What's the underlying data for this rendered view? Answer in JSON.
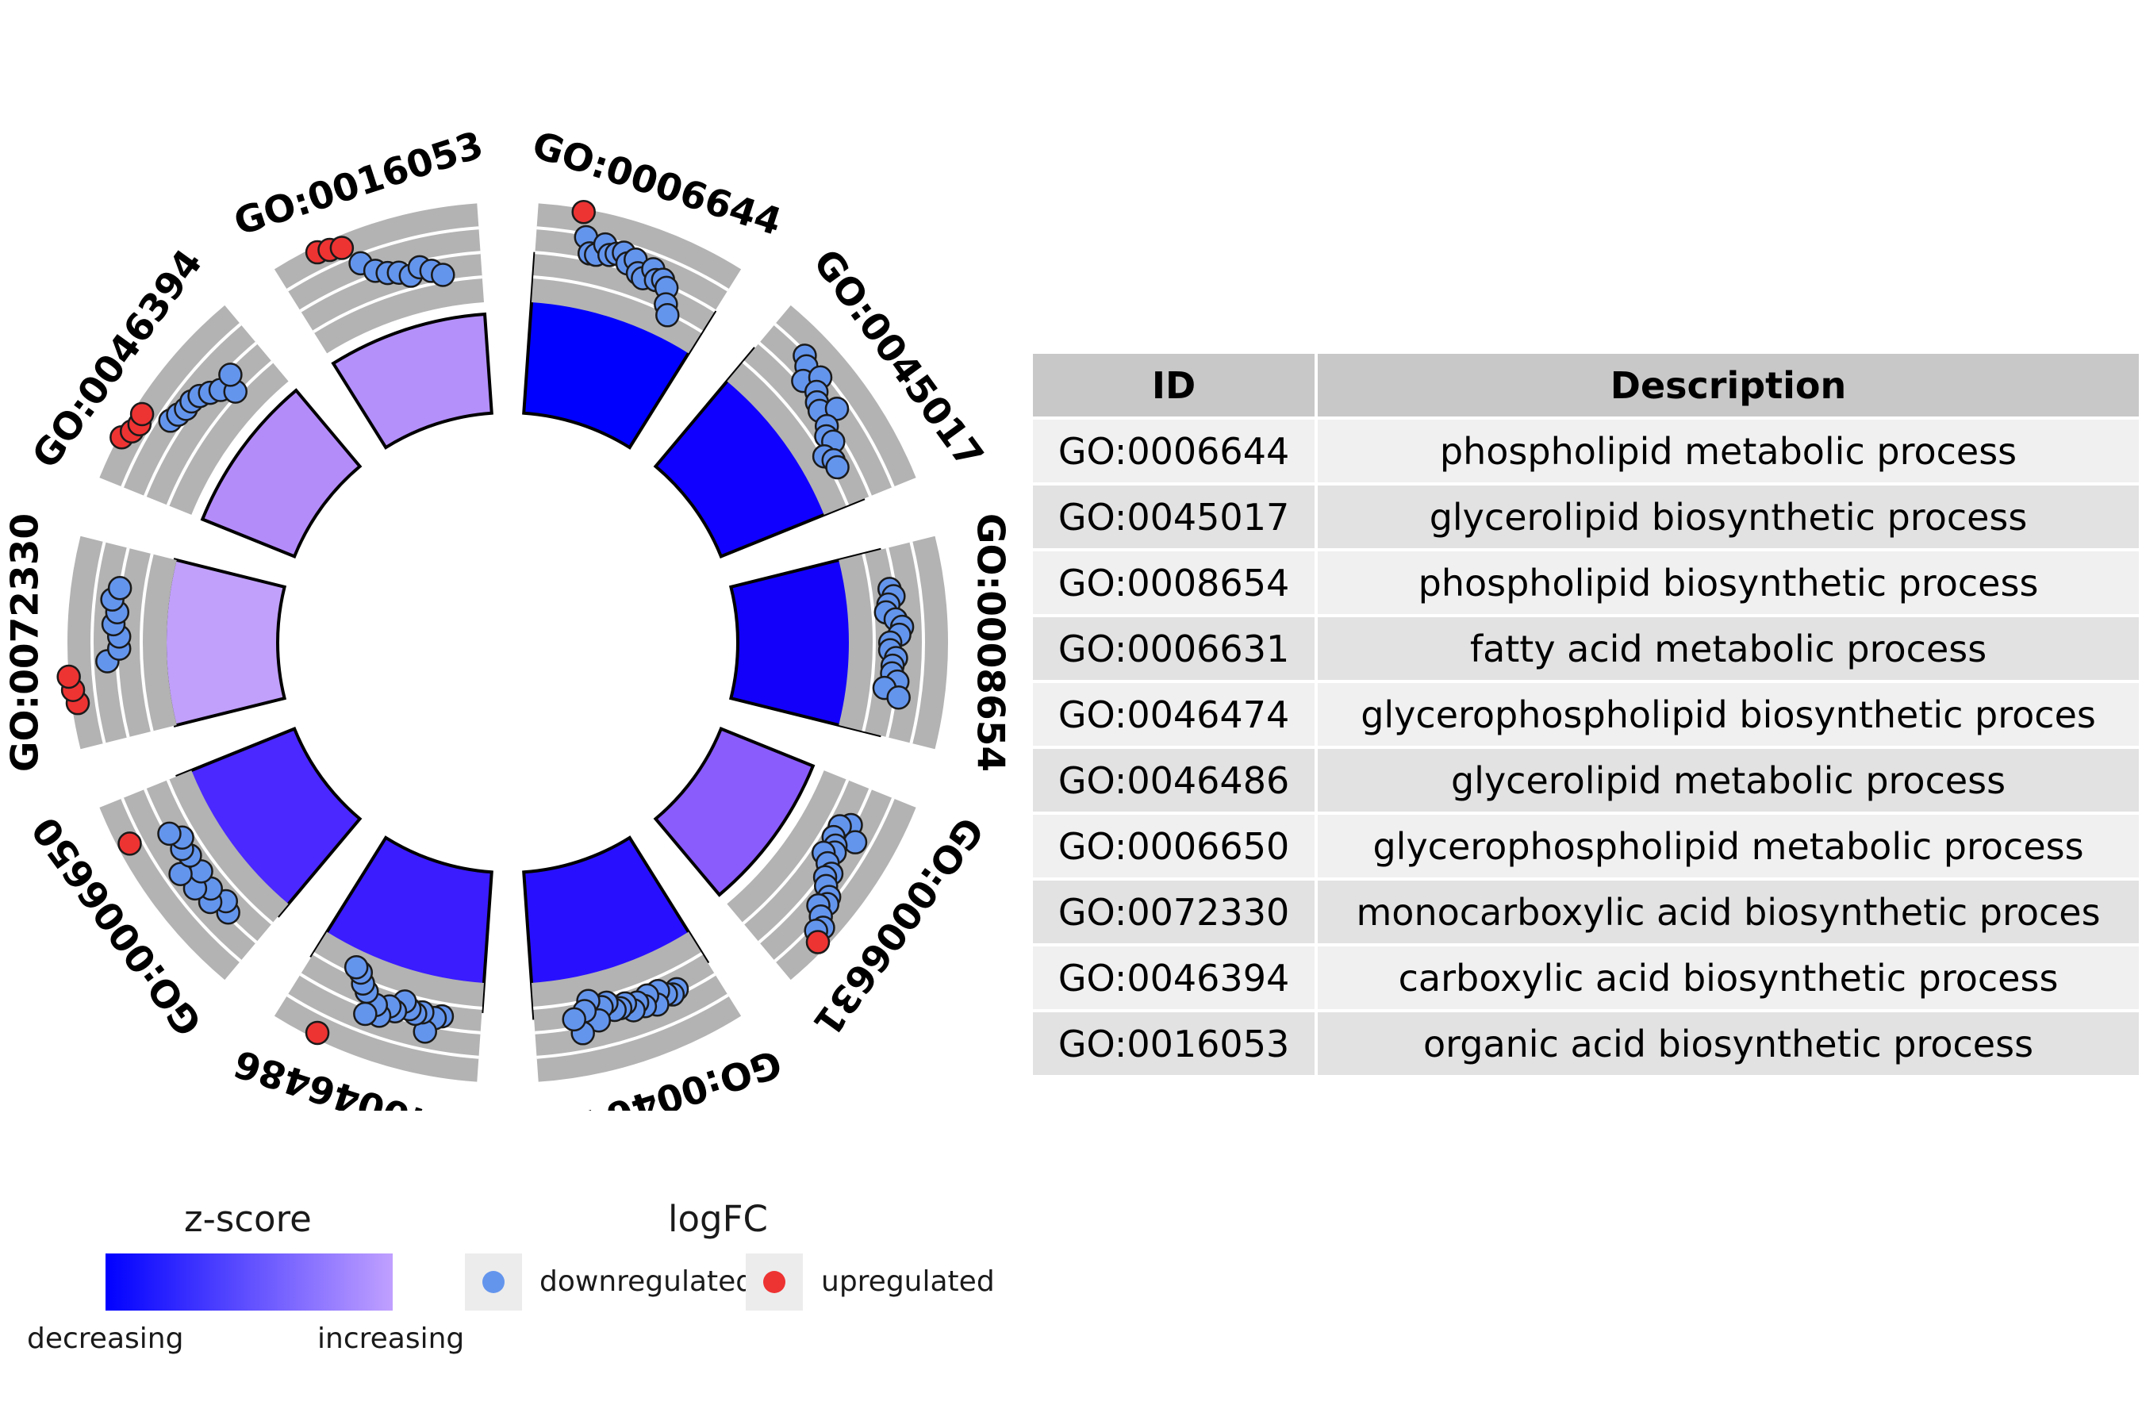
{
  "chart_data": {
    "type": "circle",
    "terms": [
      {
        "id": "GO:0006644",
        "description": "phospholipid metabolic process",
        "zscore": -0.95,
        "logfc": [
          3.9,
          3.1,
          2.6,
          2.6,
          3.0,
          2.7,
          2.8,
          2.9,
          2.6,
          2.8,
          2.4,
          2.3,
          2.7,
          2.4,
          2.5,
          2.3,
          1.8,
          1.5
        ]
      },
      {
        "id": "GO:0045017",
        "description": "glycerolipid biosynthetic process",
        "zscore": -0.9,
        "logfc": [
          3.1,
          2.9,
          2.5,
          3.0,
          2.6,
          2.4,
          2.3,
          2.8,
          2.2,
          2.0,
          2.1,
          1.6,
          1.8,
          1.8
        ]
      },
      {
        "id": "GO:0008654",
        "description": "phospholipid biosynthetic process",
        "zscore": -0.9,
        "logfc": [
          2.2,
          2.3,
          2.1,
          2.0,
          2.3,
          2.5,
          2.4,
          2.1,
          2.1,
          2.3,
          2.2,
          2.2,
          2.4,
          2.0,
          2.5
        ]
      },
      {
        "id": "GO:0006631",
        "description": "fatty acid metabolic process",
        "zscore": -0.5,
        "logfc": [
          2.3,
          2.0,
          2.7,
          2.0,
          2.2,
          2.3,
          2.0,
          2.3,
          2.6,
          2.5,
          2.7,
          3.0,
          3.1,
          2.9,
          3.2,
          3.5,
          3.4,
          3.7
        ]
      },
      {
        "id": "GO:0046474",
        "description": "glycerophospholipid biosynthetic process",
        "zscore": -0.85,
        "logfc": [
          2.2,
          2.3,
          2.2,
          2.0,
          2.4,
          2.0,
          2.3,
          2.1,
          2.3,
          2.0,
          2.1,
          2.1,
          1.8,
          1.9,
          2.3,
          1.6,
          1.9,
          2.6,
          2.1
        ]
      },
      {
        "id": "GO:0046486",
        "description": "glycerolipid metabolic process",
        "zscore": -0.8,
        "logfc": [
          2.0,
          2.1,
          2.6,
          2.0,
          2.1,
          2.0,
          1.8,
          2.2,
          2.1,
          2.5,
          2.2,
          2.6,
          1.9,
          1.7,
          1.4,
          1.3,
          3.8
        ]
      },
      {
        "id": "GO:0006650",
        "description": "glycerophospholipid metabolic process",
        "zscore": -0.7,
        "logfc": [
          2.3,
          2.1,
          2.5,
          2.2,
          2.6,
          2.1,
          2.7,
          2.1,
          2.2,
          2.0,
          2.3,
          3.6
        ]
      },
      {
        "id": "GO:0072330",
        "description": "monocarboxylic acid biosynthetic process",
        "zscore": 0.6,
        "logfc": [
          3.8,
          3.9,
          4.0,
          2.7,
          2.3,
          2.3,
          2.5,
          2.4,
          2.6,
          2.4
        ]
      },
      {
        "id": "GO:0046394",
        "description": "carboxylic acid biosynthetic process",
        "zscore": 0.5,
        "logfc": [
          3.9,
          3.7,
          3.6,
          3.7,
          2.8,
          2.7,
          2.6,
          2.6,
          2.5,
          2.3,
          2.1,
          1.7,
          2.2
        ]
      },
      {
        "id": "GO:0016053",
        "description": "organic acid biosynthetic process",
        "zscore": 0.5,
        "logfc": [
          3.8,
          3.7,
          3.6,
          2.9,
          2.5,
          2.3,
          2.2,
          2.0,
          2.2,
          2.0,
          1.8
        ]
      }
    ],
    "bar_colors": [
      "#0000ff",
      "#1000ff",
      "#1200fb",
      "#8a5cfb",
      "#2810ff",
      "#3a1cff",
      "#4a28ff",
      "#c0a0fa",
      "#b48cfa",
      "#b490fb"
    ],
    "point_colors": {
      "downregulated": "#6495ed",
      "upregulated": "#ee3333"
    },
    "table": {
      "headers": [
        "ID",
        "Description"
      ],
      "rows": [
        [
          "GO:0006644",
          "phospholipid metabolic process"
        ],
        [
          "GO:0045017",
          "glycerolipid biosynthetic process"
        ],
        [
          "GO:0008654",
          "phospholipid biosynthetic process"
        ],
        [
          "GO:0006631",
          "fatty acid metabolic process"
        ],
        [
          "GO:0046474",
          "glycerophospholipid biosynthetic proces"
        ],
        [
          "GO:0046486",
          "glycerolipid metabolic process"
        ],
        [
          "GO:0006650",
          "glycerophospholipid metabolic process"
        ],
        [
          "GO:0072330",
          "monocarboxylic acid biosynthetic proces"
        ],
        [
          "GO:0046394",
          "carboxylic acid biosynthetic process"
        ],
        [
          "GO:0016053",
          "organic acid biosynthetic process"
        ]
      ]
    },
    "legend": {
      "zscore_title": "z-score",
      "zscore_low": "decreasing",
      "zscore_high": "increasing",
      "logfc_title": "logFC",
      "logfc_down": "downregulated",
      "logfc_up": "upregulated"
    }
  }
}
